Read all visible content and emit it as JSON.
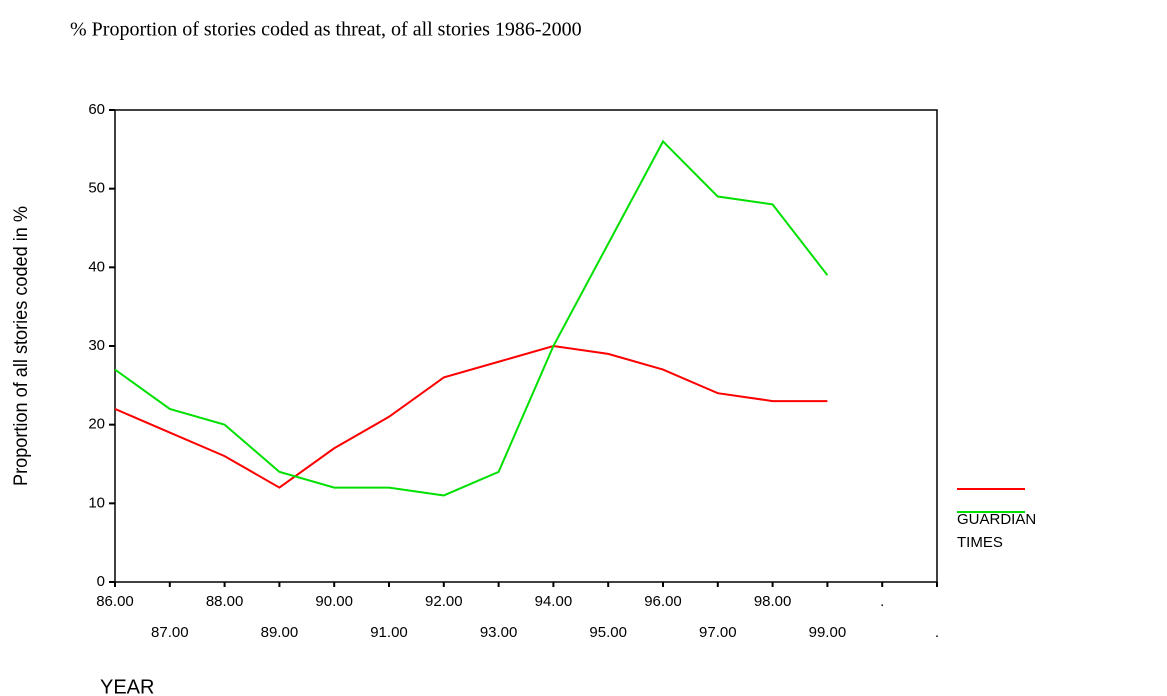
{
  "chart_data": {
    "type": "line",
    "title": "% Proportion of stories coded as threat, of all stories 1986-2000",
    "x_label": "YEAR",
    "y_label": "Proportion of all stories coded in %",
    "categories": [
      "86.00",
      "87.00",
      "88.00",
      "89.00",
      "90.00",
      "91.00",
      "92.00",
      "93.00",
      "94.00",
      "95.00",
      "96.00",
      "97.00",
      "98.00",
      "99.00",
      ".",
      "."
    ],
    "series": [
      {
        "name": "GUARDIAN",
        "color": "#ff0000",
        "values": [
          22,
          19,
          16,
          12,
          17,
          21,
          26,
          28,
          30,
          29,
          27,
          24,
          23,
          23,
          null,
          null
        ]
      },
      {
        "name": "TIMES",
        "color": "#00e000",
        "values": [
          27,
          22,
          20,
          14,
          12,
          12,
          11,
          14,
          30,
          43,
          56,
          49,
          48,
          39,
          null,
          null
        ]
      }
    ],
    "ylim": [
      0,
      60
    ],
    "yticks": [
      0,
      10,
      20,
      30,
      40,
      50,
      60
    ],
    "legend": "right",
    "grid": false
  }
}
